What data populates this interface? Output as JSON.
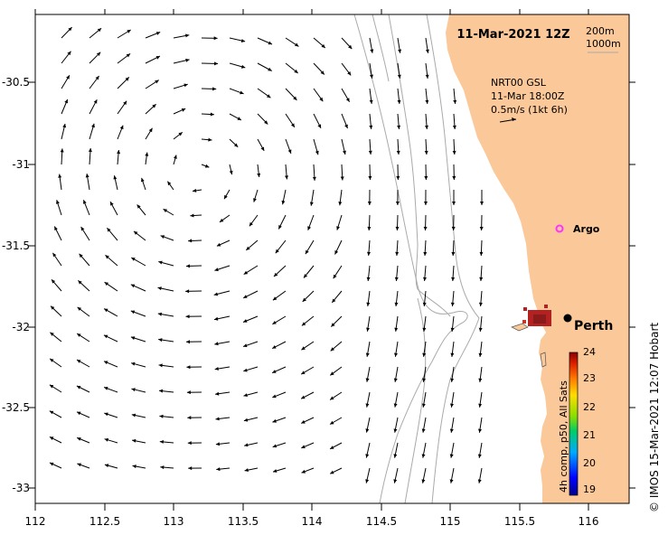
{
  "title": "11-Mar-2021 12Z",
  "depth_contours": [
    "200m",
    "1000m"
  ],
  "current_legend": {
    "source": "NRT00 GSL",
    "time": "11-Mar 18:00Z",
    "scale": "0.5m/s (1kt 6h)"
  },
  "argo_label": "Argo",
  "city_label": "Perth",
  "colorbar": {
    "label": "4h comp, p50, All Sats",
    "ticks": [
      "19",
      "20",
      "21",
      "22",
      "23",
      "24"
    ],
    "min": 19,
    "max": 24
  },
  "credit": "© IMOS 15-Mar-2021 12:07 Hobart",
  "axes": {
    "xlim": [
      112,
      116.3
    ],
    "ylim": [
      -33.1,
      -30.1
    ],
    "x_ticks": [
      "112",
      "112.5",
      "113",
      "113.5",
      "114",
      "114.5",
      "115",
      "115.5",
      "116"
    ],
    "y_ticks": [
      "-30.5",
      "-31",
      "-31.5",
      "-32",
      "-32.5",
      "-33"
    ]
  },
  "colors": {
    "land": "#fbc89a",
    "argo": "#ff33ff",
    "contour": "#aaaaaa"
  }
}
